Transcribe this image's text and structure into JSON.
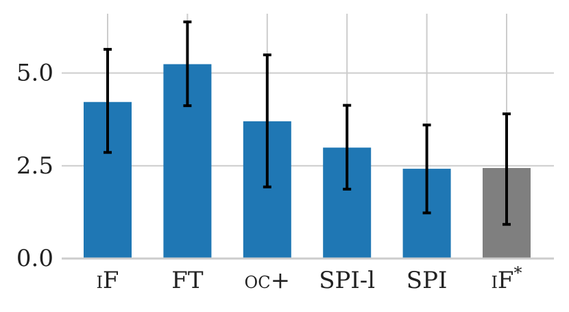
{
  "chart_data": {
    "type": "bar",
    "title": "",
    "xlabel": "",
    "ylabel": "",
    "categories": [
      "iF",
      "FT",
      "oc+",
      "SPI-l",
      "SPI",
      "iF*"
    ],
    "category_label_parts": [
      {
        "main": "iF",
        "small_caps": true,
        "sup": ""
      },
      {
        "main": "FT",
        "small_caps": false,
        "sup": ""
      },
      {
        "main": "oc+",
        "small_caps": true,
        "sup": ""
      },
      {
        "main": "SPI-l",
        "small_caps": false,
        "sup": ""
      },
      {
        "main": "SPI",
        "small_caps": false,
        "sup": ""
      },
      {
        "main": "iF",
        "small_caps": true,
        "sup": "*"
      }
    ],
    "values": [
      4.22,
      5.24,
      3.7,
      2.99,
      2.42,
      2.44
    ],
    "error_low": [
      2.86,
      4.12,
      1.93,
      1.87,
      1.23,
      0.92
    ],
    "error_high": [
      5.64,
      6.38,
      5.49,
      4.13,
      3.6,
      3.9
    ],
    "bar_colors": [
      "#1f77b4",
      "#1f77b4",
      "#1f77b4",
      "#1f77b4",
      "#1f77b4",
      "#7f7f7f"
    ],
    "y_ticks": [
      0.0,
      2.5,
      5.0
    ],
    "y_tick_labels": [
      "0.0",
      "2.5",
      "5.0"
    ],
    "ylim": [
      0,
      6.6
    ],
    "grid": true,
    "colors": {
      "grid": "#cccccc",
      "error_bar": "#000000",
      "axis": "#cccccc"
    }
  }
}
